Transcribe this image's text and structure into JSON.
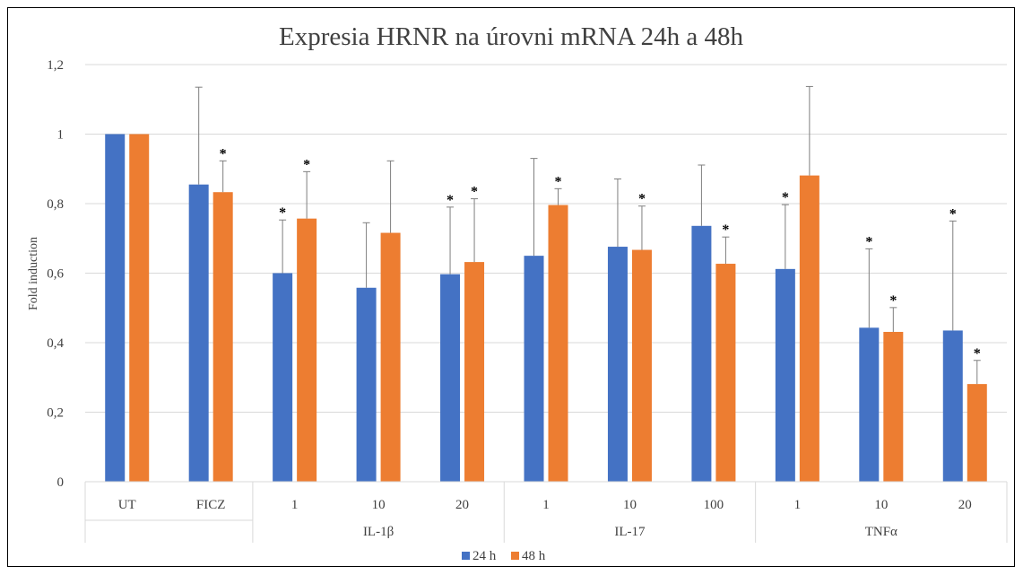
{
  "chart_data": {
    "type": "bar",
    "title": "Expresia HRNR na úrovni mRNA 24h a 48h",
    "ylabel": "Fold induction",
    "xlabel": "",
    "ylim": [
      0,
      1.2
    ],
    "yticks": [
      "0",
      "0,2",
      "0,4",
      "0,6",
      "0,8",
      "1",
      "1,2"
    ],
    "categories": [
      "UT",
      "FICZ",
      "1",
      "10",
      "20",
      "1",
      "10",
      "100",
      "1",
      "10",
      "20"
    ],
    "groups": [
      {
        "label": "IL-1β",
        "start": 2,
        "end": 4
      },
      {
        "label": "IL-17",
        "start": 5,
        "end": 7
      },
      {
        "label": "TNFα",
        "start": 8,
        "end": 10
      }
    ],
    "series": [
      {
        "name": "24 h",
        "color": "#4472c4",
        "values": [
          1.0,
          0.855,
          0.6,
          0.558,
          0.597,
          0.65,
          0.676,
          0.736,
          0.612,
          0.443,
          0.435
        ],
        "error": [
          0.0,
          0.28,
          0.153,
          0.187,
          0.193,
          0.28,
          0.195,
          0.175,
          0.185,
          0.227,
          0.315
        ],
        "significant": [
          false,
          false,
          true,
          false,
          true,
          false,
          false,
          false,
          true,
          true,
          true
        ]
      },
      {
        "name": "48 h",
        "color": "#ed7d31",
        "values": [
          1.0,
          0.833,
          0.757,
          0.716,
          0.632,
          0.796,
          0.667,
          0.627,
          0.881,
          0.431,
          0.281
        ],
        "error": [
          0.0,
          0.09,
          0.135,
          0.207,
          0.182,
          0.047,
          0.126,
          0.077,
          0.256,
          0.07,
          0.068
        ],
        "significant": [
          false,
          true,
          true,
          false,
          true,
          true,
          true,
          true,
          false,
          true,
          true
        ]
      }
    ],
    "significance_marker": "*",
    "grid": true,
    "legend_position": "bottom-center"
  }
}
